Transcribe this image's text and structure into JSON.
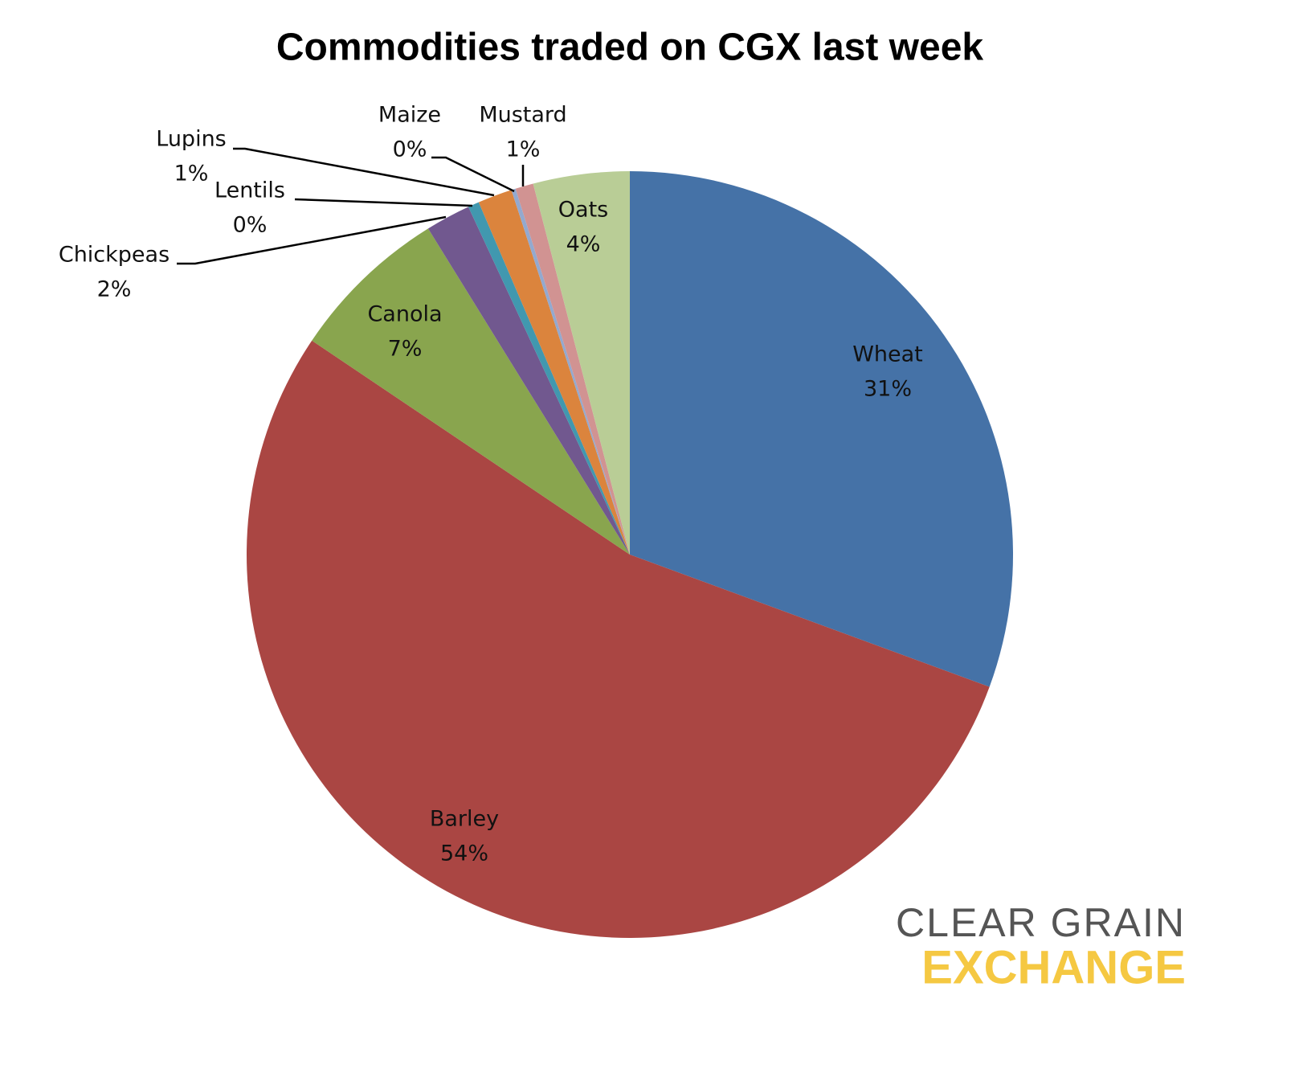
{
  "chart_data": {
    "type": "pie",
    "title": "Commodities traded on CGX last week",
    "categories": [
      "Wheat",
      "Barley",
      "Canola",
      "Chickpeas",
      "Lentils",
      "Lupins",
      "Maize",
      "Mustard",
      "Oats"
    ],
    "values": [
      30.6,
      53.8,
      6.75,
      1.9,
      0.47,
      1.45,
      0.18,
      0.76,
      4.06
    ],
    "value_labels": [
      "31%",
      "54%",
      "7%",
      "2%",
      "0%",
      "1%",
      "0%",
      "1%",
      "4%"
    ],
    "colors": [
      "#4572a7",
      "#aa4643",
      "#89a54e",
      "#71588f",
      "#4198af",
      "#db843d",
      "#93a9cf",
      "#d19392",
      "#b9cd96"
    ]
  },
  "logo": {
    "line1": "CLEAR GRAIN",
    "line2": "EXCHANGE"
  }
}
